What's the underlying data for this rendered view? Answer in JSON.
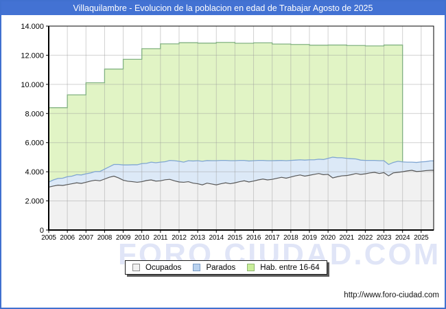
{
  "window": {
    "title": "Villaquilambre - Evolucion de la poblacion en edad de Trabajar Agosto de 2025",
    "title_bar_color": "#4372d3",
    "border_color": "#4070cf"
  },
  "watermark_text": "FORO CIUDAD.COM",
  "footer_url": "http://www.foro-ciudad.com",
  "legend": {
    "position": "bottom-center",
    "items": [
      {
        "label": "Ocupados",
        "icon": "ocupados-swatch-icon",
        "fill": "#f1f1f1",
        "border": "#8a8a8a"
      },
      {
        "label": "Parados",
        "icon": "parados-swatch-icon",
        "fill": "#b9d2ef",
        "border": "#7a9cc6"
      },
      {
        "label": "Hab. entre 16-64",
        "icon": "hab-16-64-swatch-icon",
        "fill": "#c9ee9a",
        "border": "#8db56f"
      }
    ]
  },
  "chart_data": {
    "type": "area",
    "title": "Villaquilambre - Evolucion de la poblacion en edad de Trabajar Agosto de 2025",
    "xlabel": "",
    "ylabel": "",
    "grid": true,
    "xlim": [
      2005,
      2025.67
    ],
    "ylim": [
      0,
      14000
    ],
    "x_tick_labels": [
      "2005",
      "2006",
      "2007",
      "2008",
      "2009",
      "2010",
      "2011",
      "2012",
      "2013",
      "2014",
      "2015",
      "2016",
      "2017",
      "2018",
      "2019",
      "2020",
      "2021",
      "2022",
      "2023",
      "2024",
      "2025"
    ],
    "y_tick_values": [
      0,
      2000,
      4000,
      6000,
      8000,
      10000,
      12000,
      14000
    ],
    "y_tick_labels": [
      "0",
      "2.000",
      "4.000",
      "6.000",
      "8.000",
      "10.000",
      "12.000",
      "14.000"
    ],
    "series": [
      {
        "name": "Hab. entre 16-64",
        "type": "annual-step",
        "years": [
          2005,
          2006,
          2007,
          2008,
          2009,
          2010,
          2011,
          2012,
          2013,
          2014,
          2015,
          2016,
          2017,
          2018,
          2019,
          2020,
          2021,
          2022,
          2023
        ],
        "values": [
          8400,
          9280,
          10110,
          11050,
          11720,
          12450,
          12780,
          12860,
          12830,
          12880,
          12820,
          12850,
          12770,
          12740,
          12690,
          12700,
          12670,
          12640,
          12700
        ],
        "ends_at": 2024,
        "fill": "#e1f4c5",
        "line": "#82b282"
      },
      {
        "name": "Parados",
        "type": "quarterly",
        "stacked_on": "Ocupados",
        "x_start": 2005,
        "x_step": 0.25,
        "values": [
          340,
          420,
          460,
          500,
          540,
          520,
          560,
          580,
          580,
          560,
          600,
          640,
          680,
          720,
          800,
          920,
          1050,
          1120,
          1160,
          1200,
          1240,
          1180,
          1220,
          1260,
          1280,
          1240,
          1300,
          1380,
          1420,
          1380,
          1440,
          1520,
          1580,
          1620,
          1550,
          1600,
          1660,
          1600,
          1540,
          1580,
          1520,
          1460,
          1400,
          1440,
          1400,
          1340,
          1280,
          1320,
          1280,
          1220,
          1160,
          1200,
          1140,
          1080,
          1040,
          1100,
          1060,
          1000,
          980,
          1040,
          1100,
          1420,
          1300,
          1240,
          1180,
          1100,
          1000,
          980,
          920,
          860,
          820,
          880,
          820,
          780,
          720,
          760,
          680,
          600,
          560,
          620,
          640,
          620,
          650
        ],
        "fill": "#dce9f7",
        "line": "#7fa5d2"
      },
      {
        "name": "Ocupados",
        "type": "quarterly",
        "x_start": 2005,
        "x_step": 0.25,
        "values": [
          2950,
          3020,
          3080,
          3060,
          3120,
          3180,
          3240,
          3200,
          3280,
          3360,
          3420,
          3380,
          3500,
          3620,
          3700,
          3580,
          3420,
          3350,
          3320,
          3280,
          3320,
          3400,
          3440,
          3360,
          3380,
          3450,
          3480,
          3380,
          3300,
          3280,
          3320,
          3220,
          3180,
          3100,
          3220,
          3160,
          3100,
          3180,
          3240,
          3180,
          3240,
          3320,
          3380,
          3300,
          3360,
          3440,
          3500,
          3440,
          3480,
          3550,
          3620,
          3560,
          3640,
          3720,
          3780,
          3700,
          3760,
          3820,
          3880,
          3800,
          3820,
          3580,
          3660,
          3720,
          3740,
          3800,
          3880,
          3820,
          3860,
          3920,
          3960,
          3880,
          3940,
          3720,
          3920,
          3960,
          4000,
          4060,
          4100,
          4020,
          4040,
          4080,
          4100
        ],
        "fill": "#f1f1f1",
        "line": "#565656"
      }
    ]
  }
}
